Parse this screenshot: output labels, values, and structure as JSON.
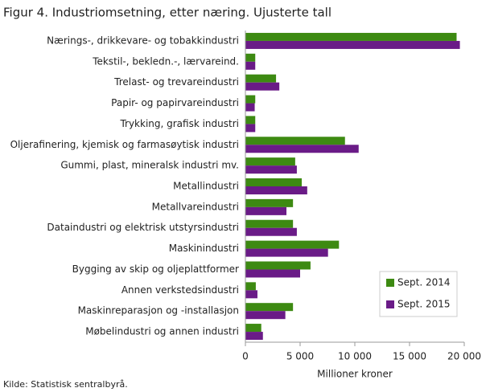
{
  "chart_data": {
    "type": "hbar",
    "title": "Figur 4. Industriomsetning, etter næring. Ujusterte tall",
    "categories": [
      "Nærings-, drikkevare- og tobakkindustri",
      "Tekstil-, bekledn.-, lærvareind.",
      "Trelast- og trevareindustri",
      "Papir- og papirvareindustri",
      "Trykking, grafisk industri",
      "Oljerafinering, kjemisk og farmasøytisk industri",
      "Gummi, plast, mineralsk industri mv.",
      "Metallindustri",
      "Metallvareindustri",
      "Dataindustri og elektrisk utstyrsindustri",
      "Maskinindustri",
      "Bygging av skip og oljeplattformer",
      "Annen verkstedsindustri",
      "Maskinreparasjon og -installasjon",
      "Møbelindustri og annen industri"
    ],
    "series": [
      {
        "name": "Sept. 2014",
        "color": "#3d8a12",
        "values": [
          19300,
          900,
          2800,
          900,
          900,
          9100,
          4550,
          5150,
          4350,
          4350,
          8550,
          5950,
          950,
          4350,
          1450
        ]
      },
      {
        "name": "Sept. 2015",
        "color": "#6a1b87",
        "values": [
          19600,
          900,
          3100,
          850,
          900,
          10350,
          4700,
          5650,
          3750,
          4700,
          7550,
          5000,
          1100,
          3650,
          1600
        ]
      }
    ],
    "xlim": [
      0,
      20000
    ],
    "xticks": [
      0,
      {
        "value": 5000,
        "label": "5 000"
      },
      {
        "value": 10000,
        "label": "10 000"
      },
      {
        "value": 15000,
        "label": "15 000"
      },
      {
        "value": 20000,
        "label": "20 000"
      }
    ],
    "xlabel": "Millioner kroner",
    "legend": "lower-right",
    "source": "Kilde: Statistisk sentralbyrå."
  }
}
